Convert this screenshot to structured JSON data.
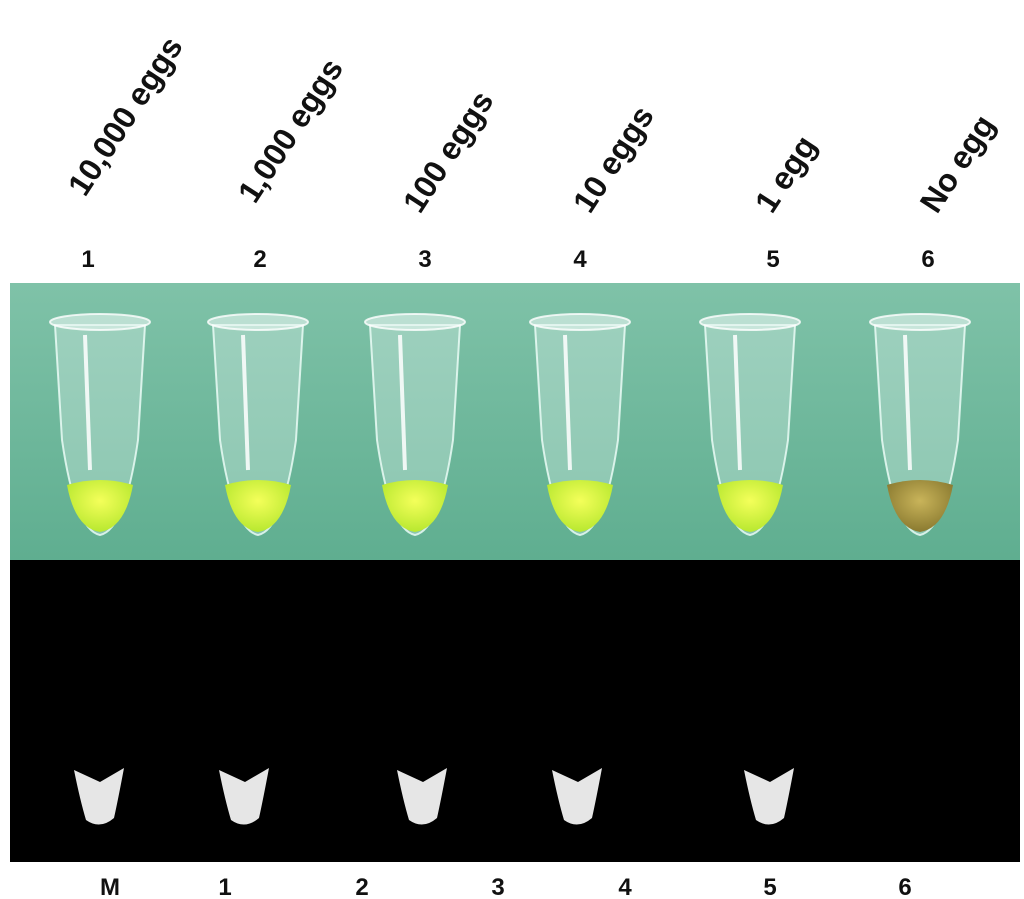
{
  "columns": [
    {
      "label": "10,000 eggs",
      "number": "1"
    },
    {
      "label": "1,000 eggs",
      "number": "2"
    },
    {
      "label": "100 eggs",
      "number": "3"
    },
    {
      "label": "10 eggs",
      "number": "4"
    },
    {
      "label": "1 egg",
      "number": "5"
    },
    {
      "label": "No egg",
      "number": "6"
    }
  ],
  "bottom_labels": [
    "M",
    "1",
    "2",
    "3",
    "4",
    "5",
    "6"
  ]
}
